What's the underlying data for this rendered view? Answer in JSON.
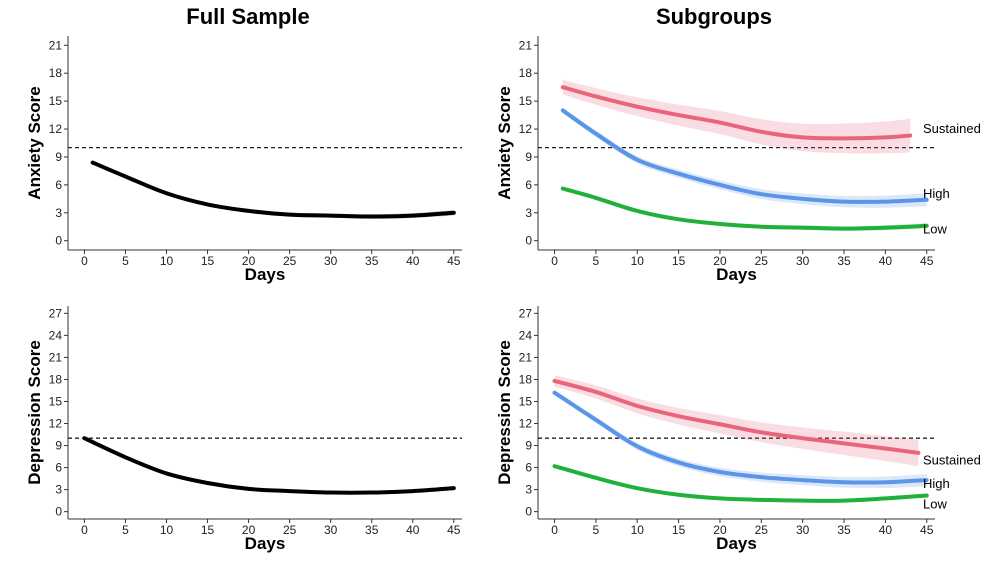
{
  "titles": {
    "left": "Full Sample",
    "right": "Subgroups"
  },
  "chart_data": [
    {
      "type": "line",
      "panel": "full-sample-anxiety",
      "title": "",
      "xlabel": "Days",
      "ylabel": "Anxiety Score",
      "xlim": [
        -2,
        46
      ],
      "ylim": [
        -1,
        22
      ],
      "xticks": [
        0,
        5,
        10,
        15,
        20,
        25,
        30,
        35,
        40,
        45
      ],
      "yticks": [
        0,
        3,
        6,
        9,
        12,
        15,
        18,
        21
      ],
      "threshold": 10,
      "series": [
        {
          "name": "Full Sample",
          "color": "#000000",
          "x": [
            1,
            5,
            10,
            15,
            20,
            25,
            30,
            35,
            40,
            45
          ],
          "y": [
            8.4,
            6.9,
            5.1,
            3.9,
            3.2,
            2.8,
            2.7,
            2.6,
            2.7,
            3.0
          ],
          "band": 0.2
        }
      ]
    },
    {
      "type": "line",
      "panel": "subgroups-anxiety",
      "title": "",
      "xlabel": "Days",
      "ylabel": "Anxiety Score",
      "xlim": [
        -2,
        46
      ],
      "ylim": [
        -1,
        22
      ],
      "xticks": [
        0,
        5,
        10,
        15,
        20,
        25,
        30,
        35,
        40,
        45
      ],
      "yticks": [
        0,
        3,
        6,
        9,
        12,
        15,
        18,
        21
      ],
      "threshold": 10,
      "series": [
        {
          "name": "Sustained",
          "color": "#e9657a",
          "x": [
            1,
            5,
            10,
            15,
            20,
            25,
            30,
            35,
            40,
            43
          ],
          "y": [
            16.5,
            15.5,
            14.4,
            13.5,
            12.7,
            11.7,
            11.1,
            11.0,
            11.1,
            11.3
          ],
          "band": 1.3
        },
        {
          "name": "High",
          "color": "#5b95e8",
          "x": [
            1,
            5,
            10,
            15,
            20,
            25,
            30,
            35,
            40,
            45
          ],
          "y": [
            14.0,
            11.5,
            8.7,
            7.2,
            6.0,
            5.0,
            4.5,
            4.2,
            4.2,
            4.4
          ],
          "band": 0.5
        },
        {
          "name": "Low",
          "color": "#1fb13a",
          "x": [
            1,
            5,
            10,
            15,
            20,
            25,
            30,
            35,
            40,
            45
          ],
          "y": [
            5.6,
            4.6,
            3.2,
            2.3,
            1.8,
            1.5,
            1.4,
            1.3,
            1.4,
            1.6
          ],
          "band": 0.2
        }
      ],
      "end_labels": [
        "Sustained",
        "High",
        "Low"
      ]
    },
    {
      "type": "line",
      "panel": "full-sample-depression",
      "title": "",
      "xlabel": "Days",
      "ylabel": "Depression Score",
      "xlim": [
        -2,
        46
      ],
      "ylim": [
        -1,
        28
      ],
      "xticks": [
        0,
        5,
        10,
        15,
        20,
        25,
        30,
        35,
        40,
        45
      ],
      "yticks": [
        0,
        3,
        6,
        9,
        12,
        15,
        18,
        21,
        24,
        27
      ],
      "threshold": 10,
      "series": [
        {
          "name": "Full Sample",
          "color": "#000000",
          "x": [
            0,
            5,
            10,
            15,
            20,
            25,
            30,
            35,
            40,
            45
          ],
          "y": [
            10.0,
            7.4,
            5.2,
            3.9,
            3.1,
            2.8,
            2.6,
            2.6,
            2.8,
            3.2
          ],
          "band": 0.2
        }
      ]
    },
    {
      "type": "line",
      "panel": "subgroups-depression",
      "title": "",
      "xlabel": "Days",
      "ylabel": "Depression Score",
      "xlim": [
        -2,
        46
      ],
      "ylim": [
        -1,
        28
      ],
      "xticks": [
        0,
        5,
        10,
        15,
        20,
        25,
        30,
        35,
        40,
        45
      ],
      "yticks": [
        0,
        3,
        6,
        9,
        12,
        15,
        18,
        21,
        24,
        27
      ],
      "threshold": 10,
      "series": [
        {
          "name": "Sustained",
          "color": "#e9657a",
          "x": [
            0,
            5,
            10,
            15,
            20,
            25,
            30,
            35,
            40,
            44
          ],
          "y": [
            17.8,
            16.3,
            14.4,
            13.0,
            11.9,
            10.8,
            10.0,
            9.3,
            8.6,
            8.0
          ],
          "band": 1.3
        },
        {
          "name": "High",
          "color": "#5b95e8",
          "x": [
            0,
            5,
            10,
            15,
            20,
            25,
            30,
            35,
            40,
            45
          ],
          "y": [
            16.2,
            12.5,
            8.9,
            6.7,
            5.4,
            4.7,
            4.3,
            4.0,
            4.0,
            4.3
          ],
          "band": 0.6
        },
        {
          "name": "Low",
          "color": "#1fb13a",
          "x": [
            0,
            5,
            10,
            15,
            20,
            25,
            30,
            35,
            40,
            45
          ],
          "y": [
            6.2,
            4.6,
            3.2,
            2.3,
            1.8,
            1.6,
            1.5,
            1.5,
            1.8,
            2.2
          ],
          "band": 0.2
        }
      ],
      "end_labels": [
        "Sustained",
        "High",
        "Low"
      ]
    }
  ]
}
